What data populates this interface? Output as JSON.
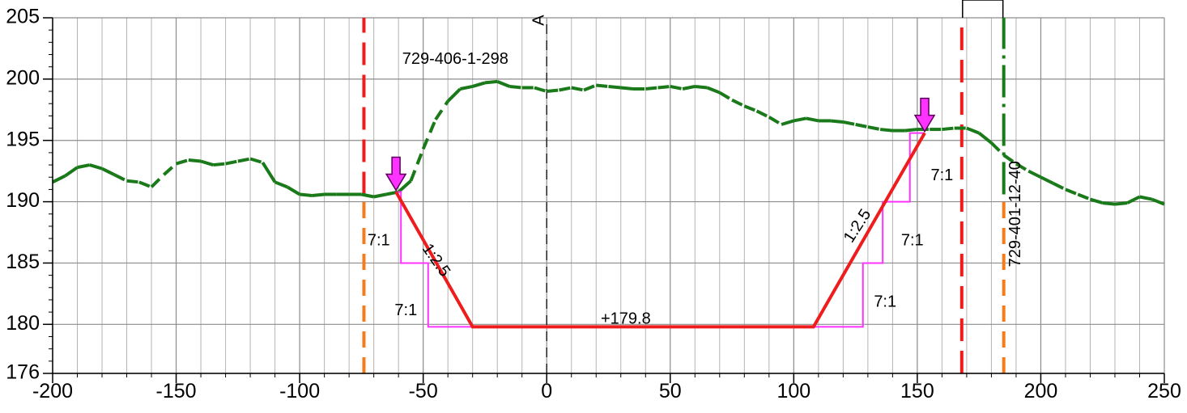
{
  "chart_data": {
    "type": "line",
    "xlim": [
      -200,
      250
    ],
    "ylim": [
      176,
      205
    ],
    "x_ticks": [
      -200,
      -150,
      -100,
      -50,
      0,
      50,
      100,
      150,
      200,
      250
    ],
    "y_ticks": [
      176,
      180,
      185,
      190,
      195,
      200,
      205
    ],
    "grid": true,
    "terrain": {
      "color": "#1a7a1a",
      "x": [
        -200,
        -195,
        -190,
        -185,
        -180,
        -175,
        -170,
        -165,
        -160,
        -155,
        -150,
        -145,
        -140,
        -135,
        -130,
        -125,
        -120,
        -115,
        -110,
        -105,
        -100,
        -95,
        -90,
        -85,
        -80,
        -75,
        -70,
        -65,
        -60,
        -55,
        -50,
        -45,
        -40,
        -35,
        -30,
        -25,
        -20,
        -15,
        -10,
        -5,
        0,
        5,
        10,
        15,
        20,
        25,
        30,
        35,
        40,
        45,
        50,
        55,
        60,
        65,
        70,
        75,
        80,
        85,
        90,
        95,
        100,
        105,
        110,
        115,
        120,
        125,
        130,
        135,
        140,
        145,
        150,
        155,
        160,
        165,
        170,
        175,
        180,
        185,
        190,
        195,
        200,
        205,
        210,
        215,
        220,
        225,
        230,
        235,
        240,
        245,
        250
      ],
      "y": [
        191.6,
        192.1,
        192.8,
        193.0,
        192.7,
        192.2,
        191.7,
        191.6,
        191.2,
        192.2,
        193.1,
        193.4,
        193.3,
        193.0,
        193.1,
        193.3,
        193.5,
        193.2,
        191.6,
        191.2,
        190.6,
        190.5,
        190.6,
        190.6,
        190.6,
        190.6,
        190.4,
        190.6,
        190.8,
        191.7,
        194.3,
        196.7,
        198.2,
        199.2,
        199.4,
        199.7,
        199.8,
        199.4,
        199.3,
        199.3,
        199.0,
        199.1,
        199.3,
        199.1,
        199.5,
        199.4,
        199.3,
        199.2,
        199.2,
        199.3,
        199.4,
        199.2,
        199.4,
        199.3,
        198.9,
        198.3,
        197.8,
        197.4,
        196.9,
        196.3,
        196.6,
        196.8,
        196.6,
        196.6,
        196.5,
        196.3,
        196.1,
        195.9,
        195.8,
        195.8,
        195.9,
        195.9,
        195.9,
        196.0,
        196.0,
        195.6,
        194.8,
        193.8,
        193.1,
        192.5,
        192.0,
        191.5,
        191.0,
        190.6,
        190.2,
        189.9,
        189.8,
        189.9,
        190.4,
        190.2,
        189.8
      ],
      "dashed_ranges": [
        [
          -175,
          -145
        ],
        [
          -135,
          -115
        ],
        [
          -55,
          -40
        ],
        [
          -15,
          25
        ],
        [
          35,
          55
        ],
        [
          70,
          95
        ],
        [
          120,
          135
        ],
        [
          150,
          170
        ],
        [
          180,
          195
        ],
        [
          205,
          220
        ]
      ]
    },
    "design_section": {
      "color": "#ee1c1c",
      "x": [
        -61,
        -30,
        108,
        153
      ],
      "y": [
        190.8,
        179.8,
        179.8,
        195.6
      ]
    },
    "setout_steps": {
      "color": "#ff33ff",
      "x": [
        -61,
        -59,
        -59,
        -48,
        -48,
        -30,
        108,
        128,
        128,
        136,
        136,
        147,
        147,
        153
      ],
      "y": [
        190.8,
        190.8,
        185,
        185,
        179.8,
        179.8,
        179.8,
        179.8,
        185,
        185,
        190,
        190,
        195.6,
        195.6
      ]
    },
    "vertical_lines": [
      {
        "name": "axis",
        "x": 0,
        "color": "#222222",
        "dash": "12 8",
        "y_range": [
          176,
          205
        ]
      },
      {
        "name": "red-left",
        "x": -74,
        "color": "#ee1c1c",
        "dash": "28 12",
        "y_range": [
          190.6,
          205
        ]
      },
      {
        "name": "red-right",
        "x": 168,
        "color": "#ee1c1c",
        "dash": "28 12",
        "y_range": [
          176,
          205
        ]
      },
      {
        "name": "orange-left",
        "x": -74,
        "color": "#f47c1a",
        "dash": "20 12",
        "y_range": [
          176,
          190.6
        ]
      },
      {
        "name": "orange-right",
        "x": 185,
        "color": "#f47c1a",
        "dash": "20 12",
        "y_range": [
          176,
          190.6
        ]
      },
      {
        "name": "green-right",
        "x": 185,
        "color": "#1a7a1a",
        "dash": "40 8 4 8",
        "y_range": [
          190.6,
          205
        ]
      }
    ],
    "markers": [
      {
        "x": -61,
        "y": 190.8,
        "color": "#ff33ff"
      },
      {
        "x": 153,
        "y": 195.6,
        "color": "#ff33ff"
      }
    ],
    "annotations": [
      {
        "text": "729-406-1-298",
        "x": -37,
        "y": 201.6,
        "rotate": 0
      },
      {
        "text": "A",
        "x": -3,
        "y": 204.8,
        "rotate": -90
      },
      {
        "text": "1:2.5",
        "x": -45,
        "y": 185.2,
        "rotate": 55
      },
      {
        "text": "1:2.5",
        "x": 126,
        "y": 188,
        "rotate": -57
      },
      {
        "text": "7:1",
        "x": -68,
        "y": 186.8,
        "rotate": 0
      },
      {
        "text": "7:1",
        "x": -57,
        "y": 181.1,
        "rotate": 0
      },
      {
        "text": "+179.8",
        "x": 32,
        "y": 180.4,
        "rotate": 0
      },
      {
        "text": "7:1",
        "x": 137,
        "y": 181.8,
        "rotate": 0
      },
      {
        "text": "7:1",
        "x": 148,
        "y": 186.8,
        "rotate": 0
      },
      {
        "text": "7:1",
        "x": 160,
        "y": 192.1,
        "rotate": 0
      },
      {
        "text": "729-401-12-40",
        "x": 190,
        "y": 189,
        "rotate": -90
      }
    ]
  }
}
